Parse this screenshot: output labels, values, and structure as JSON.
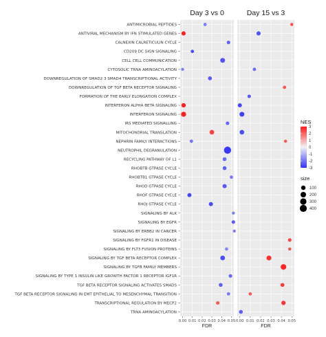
{
  "chart_data": {
    "type": "scatter",
    "xlabel": "FDR",
    "ylabel": "",
    "xlim": [
      0,
      0.05
    ],
    "x_ticks": [
      "0.00",
      "0.01",
      "0.02",
      "0.03",
      "0.04",
      "0.05"
    ],
    "terms": [
      "ANTIMICROBIAL PEPTIDES",
      "ANTIVIRAL MECHANISM BY IFN STIMULATED GENES",
      "CALNEXIN CALRETICULIN CYCLE",
      "CD209 DC SIGN SIGNALING",
      "CELL CELL COMMUNICATION",
      "CYTOSOLIC TRNA AMINOACYLATION",
      "DOWNREGULATION OF SMAD2 3 SMAD4 TRANSCRIPTIONAL ACTIVITY",
      "DOWNREGULATION OF TGF BETA RECEPTOR SIGNALING",
      "FORMATION OF THE EARLY ELONGATION COMPLEX",
      "INTERFERON ALPHA BETA SIGNALING",
      "INTERFERON SIGNALING",
      "IRS MEDIATED SIGNALLING",
      "MITOCHONDRIAL TRANSLATION",
      "NEPHRIN FAMILY INTERACTIONS",
      "NEUTROPHIL DEGRANULATION",
      "RECYCLING PATHWAY OF L1",
      "RHOBTB GTPASE CYCLE",
      "RHOBTB1 GTPASE CYCLE",
      "RHOD GTPASE CYCLE",
      "RHOF GTPASE CYCLE",
      "RHOJ GTPASE CYCLE",
      "SIGNALING BY ALK",
      "SIGNALING BY EGFR",
      "SIGNALING BY ERBB2 IN CANCER",
      "SIGNALING BY FGFR1 IN DISEASE",
      "SIGNALING BY FLT3 FUSION PROTEINS",
      "SIGNALING BY TGF BETA RECEPTOR COMPLEX",
      "SIGNALING BY TGFB FAMILY MEMBERS",
      "SIGNALING BY TYPE 1 INSULIN LIKE GROWTH FACTOR 1 RECEPTOR IGF1R",
      "TGF BETA RECEPTOR SIGNALING ACTIVATES SMADS",
      "TGF BETA RECEPTOR SIGNALING IN EMT EPITHELIAL TO MESENCHYMAL TRANSITION",
      "TRANSCRIPTIONAL REGULATION BY MECP2",
      "TRNA AMINOACYLATION"
    ],
    "panels": [
      {
        "name": "Day 3 vs 0",
        "points": [
          {
            "term": 0,
            "fdr": 0.023,
            "nes": -1.8,
            "size": 30
          },
          {
            "term": 1,
            "fdr": 0.001,
            "nes": 2.9,
            "size": 80
          },
          {
            "term": 2,
            "fdr": 0.047,
            "nes": -2.3,
            "size": 40
          },
          {
            "term": 3,
            "fdr": 0.01,
            "nes": -2.6,
            "size": 30
          },
          {
            "term": 4,
            "fdr": 0.041,
            "nes": -2.5,
            "size": 130
          },
          {
            "term": 5,
            "fdr": 0.0,
            "nes": -1.8,
            "size": 20
          },
          {
            "term": 6,
            "fdr": 0.028,
            "nes": -2.4,
            "size": 60
          },
          {
            "term": 9,
            "fdr": 0.001,
            "nes": 2.9,
            "size": 90
          },
          {
            "term": 10,
            "fdr": 0.001,
            "nes": 2.9,
            "size": 150
          },
          {
            "term": 11,
            "fdr": 0.046,
            "nes": -2.2,
            "size": 40
          },
          {
            "term": 12,
            "fdr": 0.03,
            "nes": 2.4,
            "size": 120
          },
          {
            "term": 13,
            "fdr": 0.009,
            "nes": -2.0,
            "size": 30
          },
          {
            "term": 14,
            "fdr": 0.046,
            "nes": -2.9,
            "size": 420
          },
          {
            "term": 15,
            "fdr": 0.043,
            "nes": -2.1,
            "size": 60
          },
          {
            "term": 16,
            "fdr": 0.043,
            "nes": -2.3,
            "size": 60
          },
          {
            "term": 17,
            "fdr": 0.05,
            "nes": -1.9,
            "size": 30
          },
          {
            "term": 18,
            "fdr": 0.043,
            "nes": -2.4,
            "size": 80
          },
          {
            "term": 19,
            "fdr": 0.007,
            "nes": -2.7,
            "size": 70
          },
          {
            "term": 20,
            "fdr": 0.029,
            "nes": -2.6,
            "size": 80
          },
          {
            "term": 21,
            "fdr": 0.052,
            "nes": -1.8,
            "size": 20
          },
          {
            "term": 22,
            "fdr": 0.052,
            "nes": -2.4,
            "size": 40
          },
          {
            "term": 23,
            "fdr": 0.053,
            "nes": -1.8,
            "size": 20
          },
          {
            "term": 25,
            "fdr": 0.045,
            "nes": -1.7,
            "size": 30
          },
          {
            "term": 26,
            "fdr": 0.041,
            "nes": -2.6,
            "size": 120
          },
          {
            "term": 28,
            "fdr": 0.049,
            "nes": -2.2,
            "size": 40
          },
          {
            "term": 29,
            "fdr": 0.039,
            "nes": -2.3,
            "size": 60
          },
          {
            "term": 30,
            "fdr": 0.047,
            "nes": -1.9,
            "size": 30
          },
          {
            "term": 31,
            "fdr": 0.036,
            "nes": 2.1,
            "size": 40
          }
        ]
      },
      {
        "name": "Day 15 vs 3",
        "points": [
          {
            "term": 0,
            "fdr": 0.05,
            "nes": 2.3,
            "size": 20
          },
          {
            "term": 1,
            "fdr": 0.018,
            "nes": -2.5,
            "size": 80
          },
          {
            "term": 5,
            "fdr": 0.014,
            "nes": -2.1,
            "size": 30
          },
          {
            "term": 7,
            "fdr": 0.043,
            "nes": 2.2,
            "size": 30
          },
          {
            "term": 8,
            "fdr": 0.009,
            "nes": -2.4,
            "size": 40
          },
          {
            "term": 9,
            "fdr": 0.0,
            "nes": -2.7,
            "size": 70
          },
          {
            "term": 10,
            "fdr": 0.002,
            "nes": -2.8,
            "size": 130
          },
          {
            "term": 12,
            "fdr": 0.002,
            "nes": -2.6,
            "size": 110
          },
          {
            "term": 13,
            "fdr": 0.044,
            "nes": 2.2,
            "size": 20
          },
          {
            "term": 24,
            "fdr": 0.048,
            "nes": 2.4,
            "size": 40
          },
          {
            "term": 25,
            "fdr": 0.048,
            "nes": 2.3,
            "size": 20
          },
          {
            "term": 26,
            "fdr": 0.028,
            "nes": 2.7,
            "size": 130
          },
          {
            "term": 27,
            "fdr": 0.042,
            "nes": 2.8,
            "size": 210
          },
          {
            "term": 29,
            "fdr": 0.041,
            "nes": 2.6,
            "size": 60
          },
          {
            "term": 30,
            "fdr": 0.01,
            "nes": 2.1,
            "size": 30
          },
          {
            "term": 31,
            "fdr": 0.042,
            "nes": 2.6,
            "size": 90
          },
          {
            "term": 32,
            "fdr": 0.001,
            "nes": -2.3,
            "size": 60
          }
        ]
      }
    ],
    "legend_nes": {
      "title": "NES",
      "ticks": [
        3,
        2,
        1,
        0,
        -1,
        -2,
        -3
      ],
      "low_color": "#3333ff",
      "mid_color": "#f2f2f2",
      "high_color": "#ff1a1a",
      "position": "right"
    },
    "legend_size": {
      "title": "size",
      "values": [
        100,
        200,
        300,
        400
      ],
      "position": "right"
    },
    "grid": true,
    "panel_background": "#ebebeb"
  }
}
